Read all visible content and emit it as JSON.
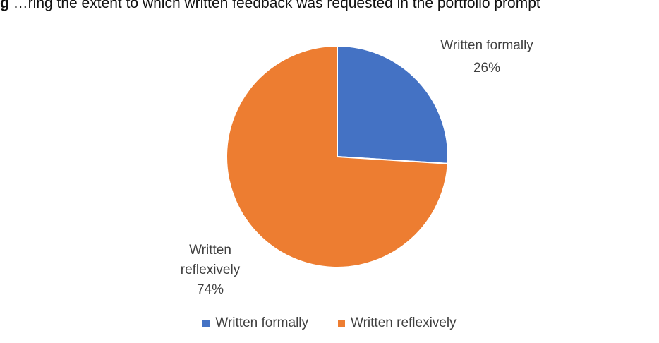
{
  "caption": {
    "prefix": "g",
    "text": "…ring the extent to which written feedback was requested in the portfolio prompt"
  },
  "chart_data": {
    "type": "pie",
    "slices": [
      {
        "label": "Written formally",
        "value": 26,
        "value_label": "26%",
        "color": "#4472C4"
      },
      {
        "label": "Written reflexively",
        "value": 74,
        "value_label": "74%",
        "color": "#ED7D31"
      }
    ],
    "legend": {
      "position": "bottom"
    },
    "data_labels": "outside"
  }
}
